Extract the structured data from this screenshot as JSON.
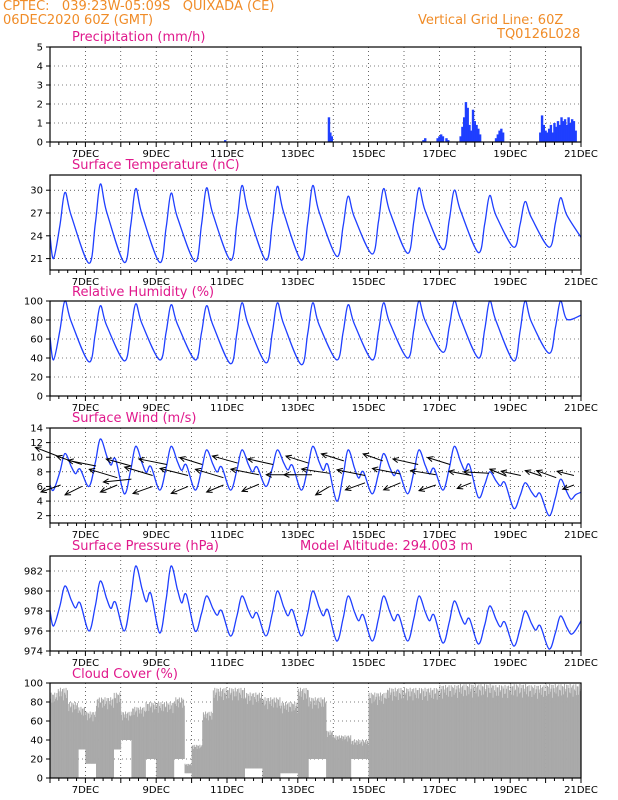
{
  "header": {
    "line1_left": "CPTEC:   039:23W-05:09S   QUIXADA (CE)",
    "line2_left": "06DEC2020 60Z (GMT)",
    "line1_right": "Vertical Grid Line: 60Z",
    "line2_right": "TQ0126L028"
  },
  "colors": {
    "header": "#f08c28",
    "title": "#e0198c",
    "series": "#1f3fff",
    "cloud": "#a9a9a9"
  },
  "x_tick_labels": [
    "7DEC",
    "9DEC",
    "11DEC",
    "13DEC",
    "15DEC",
    "17DEC",
    "19DEC",
    "21DEC"
  ],
  "chart_data": [
    {
      "type": "bar",
      "title": "Precipitation (mm/h)",
      "x_range_days": [
        6.0,
        21.0
      ],
      "ylim": [
        0,
        5
      ],
      "yticks": [
        0,
        1,
        2,
        3,
        4,
        5
      ],
      "bars": [
        [
          10.95,
          0.1
        ],
        [
          13.88,
          1.3
        ],
        [
          13.92,
          0.5
        ],
        [
          13.96,
          0.3
        ],
        [
          16.55,
          0.1
        ],
        [
          16.6,
          0.2
        ],
        [
          16.95,
          0.2
        ],
        [
          17.0,
          0.3
        ],
        [
          17.05,
          0.4
        ],
        [
          17.1,
          0.3
        ],
        [
          17.2,
          0.2
        ],
        [
          17.25,
          0.1
        ],
        [
          17.6,
          0.3
        ],
        [
          17.65,
          0.8
        ],
        [
          17.7,
          1.3
        ],
        [
          17.75,
          2.1
        ],
        [
          17.8,
          1.8
        ],
        [
          17.85,
          0.9
        ],
        [
          17.9,
          0.6
        ],
        [
          17.95,
          1.7
        ],
        [
          18.0,
          1.1
        ],
        [
          18.05,
          0.9
        ],
        [
          18.1,
          0.7
        ],
        [
          18.15,
          0.4
        ],
        [
          18.6,
          0.2
        ],
        [
          18.65,
          0.4
        ],
        [
          18.7,
          0.6
        ],
        [
          18.75,
          0.7
        ],
        [
          18.8,
          0.5
        ],
        [
          19.85,
          0.5
        ],
        [
          19.9,
          1.4
        ],
        [
          19.95,
          0.9
        ],
        [
          20.0,
          0.6
        ],
        [
          20.05,
          0.5
        ],
        [
          20.1,
          0.7
        ],
        [
          20.15,
          0.9
        ],
        [
          20.2,
          0.5
        ],
        [
          20.25,
          1.0
        ],
        [
          20.3,
          0.8
        ],
        [
          20.35,
          1.1
        ],
        [
          20.4,
          0.9
        ],
        [
          20.45,
          1.3
        ],
        [
          20.5,
          1.1
        ],
        [
          20.55,
          1.2
        ],
        [
          20.6,
          0.9
        ],
        [
          20.65,
          1.3
        ],
        [
          20.7,
          1.0
        ],
        [
          20.75,
          1.2
        ],
        [
          20.8,
          1.1
        ],
        [
          20.85,
          0.6
        ]
      ]
    },
    {
      "type": "line",
      "title": "Surface Temperature (nC)",
      "x_range_days": [
        6.0,
        21.0
      ],
      "ylim": [
        19.5,
        32.0
      ],
      "yticks": [
        21,
        24,
        27,
        30
      ],
      "daily_minmax": [
        [
          21.0,
          29.7
        ],
        [
          20.4,
          30.8
        ],
        [
          20.5,
          30.2
        ],
        [
          20.5,
          29.6
        ],
        [
          20.6,
          30.3
        ],
        [
          20.8,
          30.6
        ],
        [
          20.8,
          30.5
        ],
        [
          20.8,
          30.6
        ],
        [
          21.3,
          29.2
        ],
        [
          21.6,
          30.2
        ],
        [
          21.7,
          30.3
        ],
        [
          22.2,
          30.0
        ],
        [
          21.8,
          29.3
        ],
        [
          22.5,
          28.5
        ],
        [
          22.5,
          29.0
        ],
        [
          23.5,
          26.0
        ]
      ],
      "start_value": 24.0,
      "end_value": 23.8
    },
    {
      "type": "line",
      "title": "Relative Humidity (%)",
      "x_range_days": [
        6.0,
        21.0
      ],
      "ylim": [
        0,
        100
      ],
      "yticks": [
        0,
        20,
        40,
        60,
        80,
        100
      ],
      "daily_minmax": [
        [
          38,
          100
        ],
        [
          36,
          95
        ],
        [
          37,
          97
        ],
        [
          38,
          96
        ],
        [
          38,
          95
        ],
        [
          34,
          98
        ],
        [
          35,
          98
        ],
        [
          33,
          98
        ],
        [
          38,
          96
        ],
        [
          38,
          98
        ],
        [
          40,
          100
        ],
        [
          46,
          100
        ],
        [
          40,
          100
        ],
        [
          37,
          100
        ],
        [
          45,
          100
        ],
        [
          65,
          85
        ]
      ],
      "start_value": 62,
      "end_value": 85
    },
    {
      "type": "line",
      "title": "Surface Wind (m/s)",
      "x_range_days": [
        6.0,
        21.0
      ],
      "ylim": [
        1,
        14
      ],
      "yticks": [
        2,
        4,
        6,
        8,
        10,
        12,
        14
      ],
      "daily_minmax": [
        [
          5.5,
          10.5
        ],
        [
          6.0,
          12.5
        ],
        [
          5.0,
          11.5
        ],
        [
          5.5,
          11.5
        ],
        [
          5.5,
          11.0
        ],
        [
          5.5,
          11.0
        ],
        [
          6.0,
          11.0
        ],
        [
          5.5,
          11.5
        ],
        [
          4.0,
          11.0
        ],
        [
          5.0,
          10.5
        ],
        [
          5.0,
          11.0
        ],
        [
          5.5,
          11.5
        ],
        [
          4.5,
          8.0
        ],
        [
          3.0,
          6.5
        ],
        [
          2.0,
          7.0
        ],
        [
          4.5,
          8.0
        ]
      ],
      "start_value": 6.2,
      "end_value": 5.2,
      "wind_vectors": [
        [
          6.3,
          10.0,
          -0.9,
          0.7
        ],
        [
          6.3,
          6.2,
          -0.7,
          -0.5
        ],
        [
          6.9,
          9.0,
          -0.9,
          0.6
        ],
        [
          6.9,
          6.0,
          -0.6,
          -0.6
        ],
        [
          7.3,
          8.8,
          -1.0,
          0.4
        ],
        [
          7.9,
          7.2,
          -1.0,
          0.6
        ],
        [
          7.9,
          6.2,
          -0.6,
          -0.5
        ],
        [
          8.3,
          8.8,
          -0.9,
          0.5
        ],
        [
          8.3,
          7.0,
          -1.0,
          -0.2
        ],
        [
          8.9,
          7.5,
          -1.0,
          0.6
        ],
        [
          8.9,
          6.0,
          -0.7,
          -0.5
        ],
        [
          9.3,
          9.0,
          -1.0,
          0.4
        ],
        [
          9.9,
          7.5,
          -1.0,
          0.5
        ],
        [
          9.9,
          6.0,
          -0.6,
          -0.5
        ],
        [
          10.3,
          9.0,
          -0.8,
          0.5
        ],
        [
          10.9,
          7.2,
          -1.0,
          0.6
        ],
        [
          10.9,
          6.2,
          -0.6,
          -0.5
        ],
        [
          11.3,
          9.2,
          -0.9,
          0.5
        ],
        [
          11.9,
          7.6,
          -1.0,
          0.4
        ],
        [
          11.9,
          6.3,
          -0.6,
          -0.5
        ],
        [
          12.3,
          9.0,
          -0.9,
          0.4
        ],
        [
          12.9,
          7.6,
          -1.0,
          0.0
        ],
        [
          13.3,
          9.2,
          -0.8,
          0.5
        ],
        [
          13.4,
          7.6,
          -1.0,
          0.0
        ],
        [
          13.9,
          7.8,
          -1.0,
          0.3
        ],
        [
          13.9,
          6.0,
          -0.5,
          -0.6
        ],
        [
          14.3,
          9.5,
          -0.8,
          0.5
        ],
        [
          14.9,
          7.5,
          -1.0,
          0.4
        ],
        [
          14.9,
          6.5,
          -0.7,
          -0.5
        ],
        [
          15.4,
          9.5,
          -0.7,
          0.5
        ],
        [
          15.9,
          7.7,
          -1.0,
          0.4
        ],
        [
          15.9,
          6.5,
          -0.6,
          -0.5
        ],
        [
          16.4,
          9.0,
          -0.9,
          0.4
        ],
        [
          16.9,
          7.6,
          -0.9,
          0.3
        ],
        [
          16.9,
          6.2,
          -0.6,
          -0.4
        ],
        [
          17.3,
          9.0,
          -0.8,
          0.5
        ],
        [
          17.9,
          7.5,
          -0.8,
          0.3
        ],
        [
          17.9,
          6.5,
          -0.5,
          -0.4
        ],
        [
          18.4,
          7.8,
          -0.9,
          0.1
        ],
        [
          18.9,
          7.4,
          -0.6,
          0.5
        ],
        [
          19.3,
          7.5,
          -0.7,
          0.3
        ],
        [
          19.9,
          7.4,
          -0.6,
          0.4
        ],
        [
          20.3,
          7.2,
          -0.7,
          0.5
        ],
        [
          20.8,
          7.5,
          -0.6,
          0.3
        ],
        [
          20.8,
          6.2,
          -0.4,
          -0.3
        ]
      ]
    },
    {
      "type": "line",
      "title": "Surface Pressure (hPa)",
      "annotation": "Model Altitude: 294.003 m",
      "x_range_days": [
        6.0,
        21.0
      ],
      "ylim": [
        974,
        983.5
      ],
      "yticks": [
        974,
        976,
        978,
        980,
        982
      ],
      "daily_minmax": [
        [
          976.5,
          980.5
        ],
        [
          976.0,
          981.0
        ],
        [
          976.0,
          982.5
        ],
        [
          975.8,
          982.5
        ],
        [
          976.0,
          979.5
        ],
        [
          975.5,
          979.5
        ],
        [
          975.5,
          980.0
        ],
        [
          975.5,
          980.0
        ],
        [
          975.0,
          979.5
        ],
        [
          975.0,
          979.5
        ],
        [
          975.0,
          979.5
        ],
        [
          974.8,
          979.0
        ],
        [
          974.7,
          978.5
        ],
        [
          974.5,
          978.0
        ],
        [
          974.2,
          977.5
        ],
        [
          974.5,
          977.0
        ]
      ],
      "start_value": 978.0,
      "end_value": 977.0
    },
    {
      "type": "area",
      "title": "Cloud Cover (%)",
      "x_range_days": [
        6.0,
        21.0
      ],
      "ylim": [
        0,
        100
      ],
      "yticks": [
        0,
        20,
        40,
        60,
        80,
        100
      ],
      "segments": [
        [
          6.0,
          6.2,
          90,
          0
        ],
        [
          6.2,
          6.5,
          95,
          0
        ],
        [
          6.5,
          6.8,
          80,
          0
        ],
        [
          6.8,
          7.0,
          75,
          30
        ],
        [
          7.0,
          7.3,
          70,
          15
        ],
        [
          7.3,
          7.8,
          85,
          0
        ],
        [
          7.8,
          8.0,
          90,
          30
        ],
        [
          8.0,
          8.3,
          70,
          40
        ],
        [
          8.3,
          8.7,
          75,
          0
        ],
        [
          8.7,
          9.0,
          80,
          20
        ],
        [
          9.0,
          9.5,
          80,
          0
        ],
        [
          9.5,
          9.8,
          85,
          20
        ],
        [
          9.8,
          10.0,
          15,
          5
        ],
        [
          10.0,
          10.3,
          35,
          0
        ],
        [
          10.3,
          10.6,
          70,
          0
        ],
        [
          10.6,
          11.0,
          95,
          0
        ],
        [
          11.0,
          11.5,
          95,
          0
        ],
        [
          11.5,
          12.0,
          90,
          10
        ],
        [
          12.0,
          12.5,
          85,
          0
        ],
        [
          12.5,
          13.0,
          80,
          5
        ],
        [
          13.0,
          13.3,
          95,
          0
        ],
        [
          13.3,
          13.8,
          85,
          20
        ],
        [
          13.8,
          14.0,
          50,
          0
        ],
        [
          14.0,
          14.5,
          45,
          0
        ],
        [
          14.5,
          15.0,
          40,
          20
        ],
        [
          15.0,
          15.5,
          90,
          0
        ],
        [
          15.5,
          16.0,
          95,
          0
        ],
        [
          16.0,
          16.5,
          95,
          0
        ],
        [
          16.5,
          17.0,
          95,
          0
        ],
        [
          17.0,
          17.5,
          98,
          0
        ],
        [
          17.5,
          18.0,
          99,
          0
        ],
        [
          18.0,
          18.5,
          99,
          0
        ],
        [
          18.5,
          19.0,
          98,
          0
        ],
        [
          19.0,
          19.5,
          99,
          0
        ],
        [
          19.5,
          20.0,
          98,
          0
        ],
        [
          20.0,
          20.5,
          99,
          0
        ],
        [
          20.5,
          21.0,
          99,
          0
        ]
      ]
    }
  ]
}
